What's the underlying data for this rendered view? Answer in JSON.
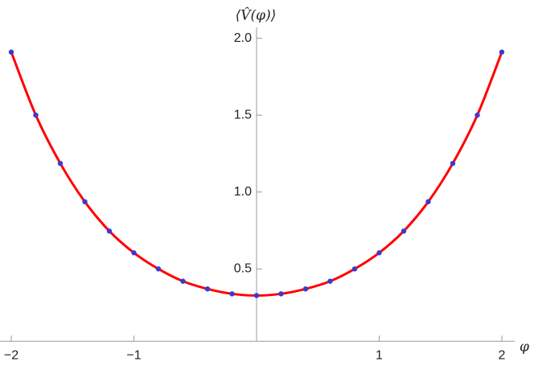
{
  "chart_data": {
    "type": "line",
    "x_label": "φ",
    "y_label": "⟨V̂(φ)⟩",
    "x": [
      -2,
      -1.8,
      -1.6,
      -1.4,
      -1.2,
      -1,
      -0.8,
      -0.6,
      -0.4,
      -0.2,
      0,
      0.2,
      0.4,
      0.6,
      0.8,
      1,
      1.2,
      1.4,
      1.6,
      1.8,
      2
    ],
    "series": [
      {
        "color": "#ff0000",
        "style": "line",
        "values": [
          1.91,
          1.5,
          1.186,
          0.937,
          0.746,
          0.605,
          0.5,
          0.42,
          0.37,
          0.338,
          0.327,
          0.338,
          0.37,
          0.42,
          0.5,
          0.605,
          0.746,
          0.937,
          1.186,
          1.5,
          1.91
        ]
      },
      {
        "color": "#3a3ad0",
        "style": "markers",
        "values": [
          1.91,
          1.5,
          1.186,
          0.937,
          0.746,
          0.605,
          0.5,
          0.42,
          0.37,
          0.338,
          0.327,
          0.338,
          0.37,
          0.42,
          0.5,
          0.605,
          0.746,
          0.937,
          1.186,
          1.5,
          1.91
        ]
      }
    ],
    "xlim": [
      -2,
      2
    ],
    "ylim": [
      0.03,
      2.04
    ],
    "xticks": [
      {
        "value": -2,
        "label": "−2"
      },
      {
        "value": -1,
        "label": "−1"
      },
      1,
      2
    ],
    "yticks": [
      0.5,
      {
        "value": 1,
        "label": "1.0"
      },
      1.5,
      {
        "value": 2,
        "label": "2.0"
      }
    ]
  }
}
